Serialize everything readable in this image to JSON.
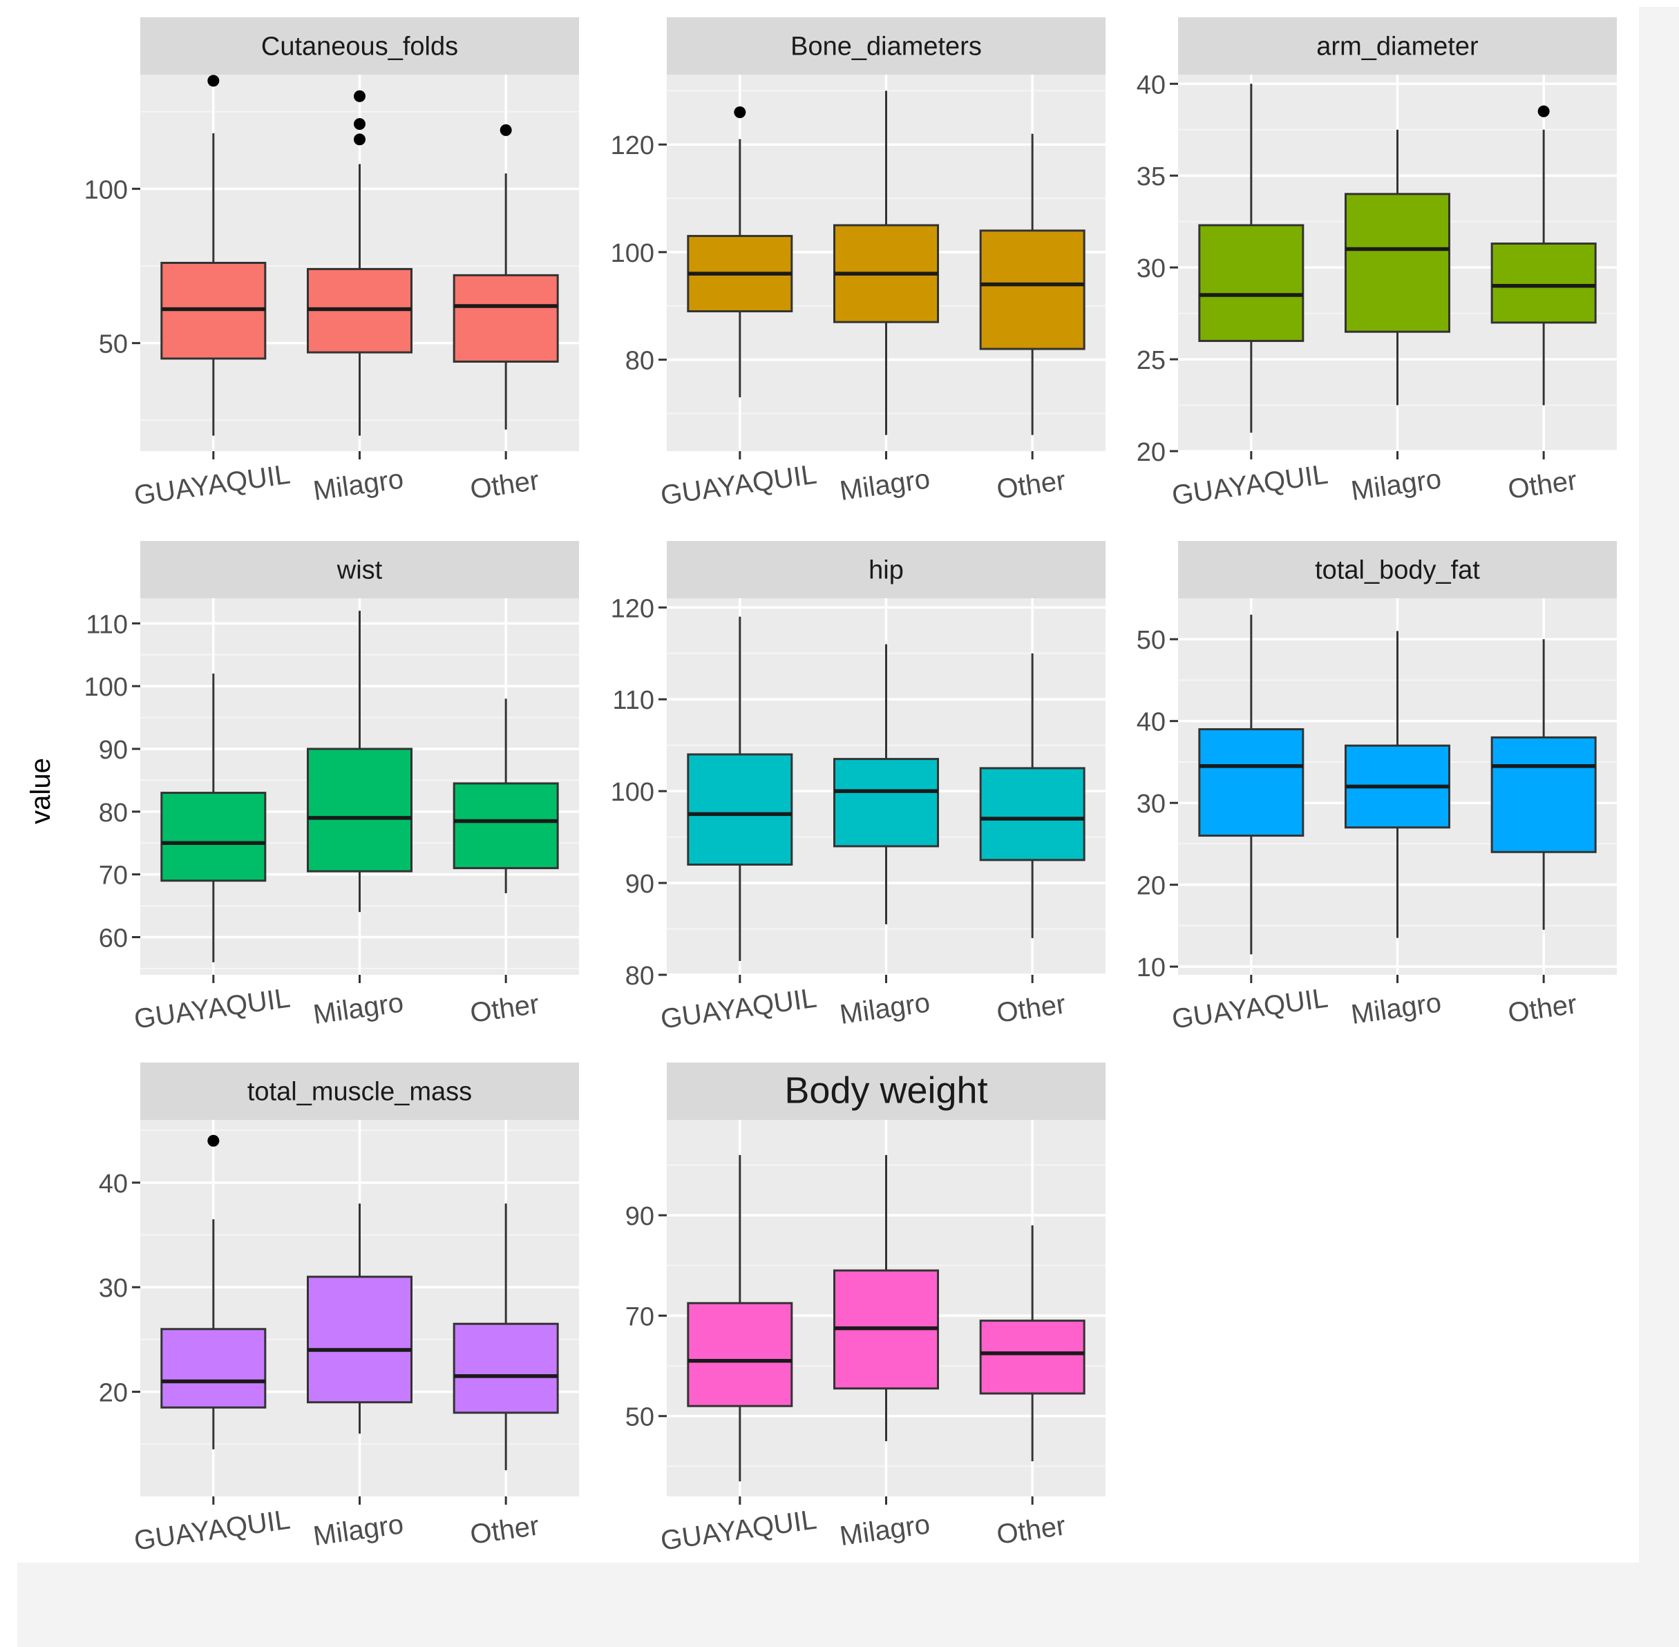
{
  "chart_data": {
    "type": "boxplot",
    "layout": "facet_wrap 3 columns, free y scales",
    "ylabel": "value",
    "categories": [
      "GUAYAQUIL",
      "Milagro",
      "Other"
    ],
    "panels": [
      {
        "title": "Cutaneous_folds",
        "fill": "#F8766D",
        "ylim": [
          15,
          137
        ],
        "yticks": [
          50,
          100
        ],
        "boxes": [
          {
            "category": "GUAYAQUIL",
            "min": 20,
            "q1": 45,
            "median": 61,
            "q3": 76,
            "max": 118,
            "outliers": [
              135
            ]
          },
          {
            "category": "Milagro",
            "min": 20,
            "q1": 47,
            "median": 61,
            "q3": 74,
            "max": 108,
            "outliers": [
              116,
              121,
              130
            ]
          },
          {
            "category": "Other",
            "min": 22,
            "q1": 44,
            "median": 62,
            "q3": 72,
            "max": 105,
            "outliers": [
              119
            ]
          }
        ]
      },
      {
        "title": "Bone_diameters",
        "fill": "#CD9600",
        "ylim": [
          63,
          133
        ],
        "yticks": [
          80,
          100,
          120
        ],
        "boxes": [
          {
            "category": "GUAYAQUIL",
            "min": 73,
            "q1": 89,
            "median": 96,
            "q3": 103,
            "max": 121,
            "outliers": [
              126
            ]
          },
          {
            "category": "Milagro",
            "min": 66,
            "q1": 87,
            "median": 96,
            "q3": 105,
            "max": 130,
            "outliers": []
          },
          {
            "category": "Other",
            "min": 66,
            "q1": 82,
            "median": 94,
            "q3": 104,
            "max": 122,
            "outliers": []
          }
        ]
      },
      {
        "title": "arm_diameter",
        "fill": "#7CAE00",
        "ylim": [
          20,
          40.5
        ],
        "yticks": [
          20,
          25,
          30,
          35,
          40
        ],
        "boxes": [
          {
            "category": "GUAYAQUIL",
            "min": 21,
            "q1": 26,
            "median": 28.5,
            "q3": 32.3,
            "max": 40,
            "outliers": []
          },
          {
            "category": "Milagro",
            "min": 22.5,
            "q1": 26.5,
            "median": 31,
            "q3": 34,
            "max": 37.5,
            "outliers": []
          },
          {
            "category": "Other",
            "min": 22.5,
            "q1": 27,
            "median": 29,
            "q3": 31.3,
            "max": 37.5,
            "outliers": [
              38.5
            ]
          }
        ]
      },
      {
        "title": "wist",
        "fill": "#00BE67",
        "ylim": [
          54,
          114
        ],
        "yticks": [
          60,
          70,
          80,
          90,
          100,
          110
        ],
        "boxes": [
          {
            "category": "GUAYAQUIL",
            "min": 56,
            "q1": 69,
            "median": 75,
            "q3": 83,
            "max": 102,
            "outliers": []
          },
          {
            "category": "Milagro",
            "min": 64,
            "q1": 70.5,
            "median": 79,
            "q3": 90,
            "max": 112,
            "outliers": []
          },
          {
            "category": "Other",
            "min": 67,
            "q1": 71,
            "median": 78.5,
            "q3": 84.5,
            "max": 98,
            "outliers": []
          }
        ]
      },
      {
        "title": "hip",
        "fill": "#00BFC4",
        "ylim": [
          80,
          121
        ],
        "yticks": [
          80,
          90,
          100,
          110,
          120
        ],
        "boxes": [
          {
            "category": "GUAYAQUIL",
            "min": 81.5,
            "q1": 92,
            "median": 97.5,
            "q3": 104,
            "max": 119,
            "outliers": []
          },
          {
            "category": "Milagro",
            "min": 85.5,
            "q1": 94,
            "median": 100,
            "q3": 103.5,
            "max": 116,
            "outliers": []
          },
          {
            "category": "Other",
            "min": 84,
            "q1": 92.5,
            "median": 97,
            "q3": 102.5,
            "max": 115,
            "outliers": []
          }
        ]
      },
      {
        "title": "total_body_fat",
        "fill": "#00A9FF",
        "ylim": [
          9,
          55
        ],
        "yticks": [
          10,
          20,
          30,
          40,
          50
        ],
        "boxes": [
          {
            "category": "GUAYAQUIL",
            "min": 11.5,
            "q1": 26,
            "median": 34.5,
            "q3": 39,
            "max": 53,
            "outliers": []
          },
          {
            "category": "Milagro",
            "min": 13.5,
            "q1": 27,
            "median": 32,
            "q3": 37,
            "max": 51,
            "outliers": []
          },
          {
            "category": "Other",
            "min": 14.5,
            "q1": 24,
            "median": 34.5,
            "q3": 38,
            "max": 50,
            "outliers": []
          }
        ]
      },
      {
        "title": "total_muscle_mass",
        "fill": "#C77CFF",
        "ylim": [
          10,
          46
        ],
        "yticks": [
          20,
          30,
          40
        ],
        "boxes": [
          {
            "category": "GUAYAQUIL",
            "min": 14.5,
            "q1": 18.5,
            "median": 21,
            "q3": 26,
            "max": 36.5,
            "outliers": [
              44
            ]
          },
          {
            "category": "Milagro",
            "min": 16,
            "q1": 19,
            "median": 24,
            "q3": 31,
            "max": 38,
            "outliers": []
          },
          {
            "category": "Other",
            "min": 12.5,
            "q1": 18,
            "median": 21.5,
            "q3": 26.5,
            "max": 38,
            "outliers": []
          }
        ]
      },
      {
        "title": "Body weight",
        "fill": "#FF61CC",
        "ylim": [
          34,
          109
        ],
        "yticks": [
          50,
          70,
          90
        ],
        "boxes": [
          {
            "category": "GUAYAQUIL",
            "min": 37,
            "q1": 52,
            "median": 61,
            "q3": 72.5,
            "max": 102,
            "outliers": []
          },
          {
            "category": "Milagro",
            "min": 45,
            "q1": 55.5,
            "median": 67.5,
            "q3": 79,
            "max": 102,
            "outliers": []
          },
          {
            "category": "Other",
            "min": 41,
            "q1": 54.5,
            "median": 62.5,
            "q3": 69,
            "max": 88,
            "outliers": []
          }
        ]
      }
    ]
  }
}
